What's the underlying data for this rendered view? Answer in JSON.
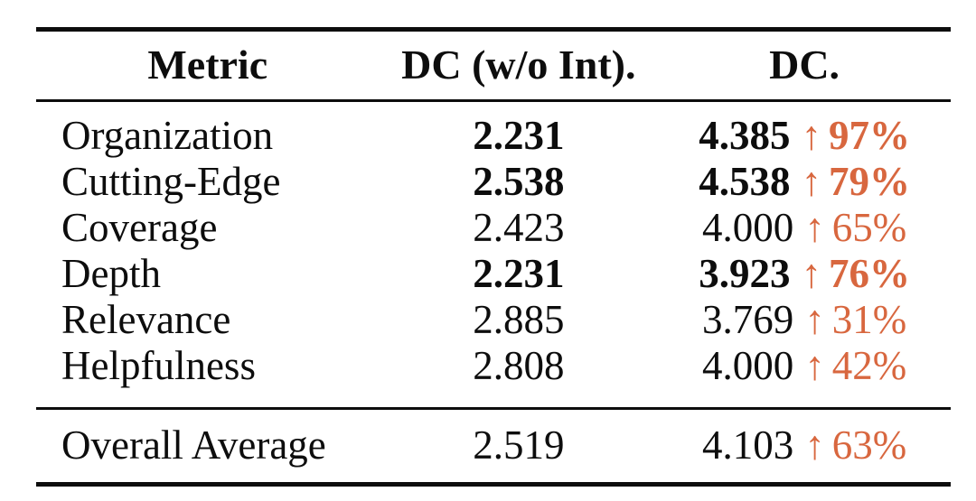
{
  "accent_color": "#d8673f",
  "icons": {
    "up_arrow": "↑"
  },
  "table": {
    "columns": [
      "Metric",
      "DC (w/o Int).",
      "DC."
    ],
    "rows": [
      {
        "metric": "Organization",
        "dc_wo_int": "2.231",
        "dc": "4.385",
        "delta": "97%",
        "emphasis": true
      },
      {
        "metric": "Cutting-Edge",
        "dc_wo_int": "2.538",
        "dc": "4.538",
        "delta": "79%",
        "emphasis": true
      },
      {
        "metric": "Coverage",
        "dc_wo_int": "2.423",
        "dc": "4.000",
        "delta": "65%",
        "emphasis": false
      },
      {
        "metric": "Depth",
        "dc_wo_int": "2.231",
        "dc": "3.923",
        "delta": "76%",
        "emphasis": true
      },
      {
        "metric": "Relevance",
        "dc_wo_int": "2.885",
        "dc": "3.769",
        "delta": "31%",
        "emphasis": false
      },
      {
        "metric": "Helpfulness",
        "dc_wo_int": "2.808",
        "dc": "4.000",
        "delta": "42%",
        "emphasis": false
      }
    ],
    "footer": {
      "metric": "Overall Average",
      "dc_wo_int": "2.519",
      "dc": "4.103",
      "delta": "63%",
      "emphasis": false
    }
  }
}
